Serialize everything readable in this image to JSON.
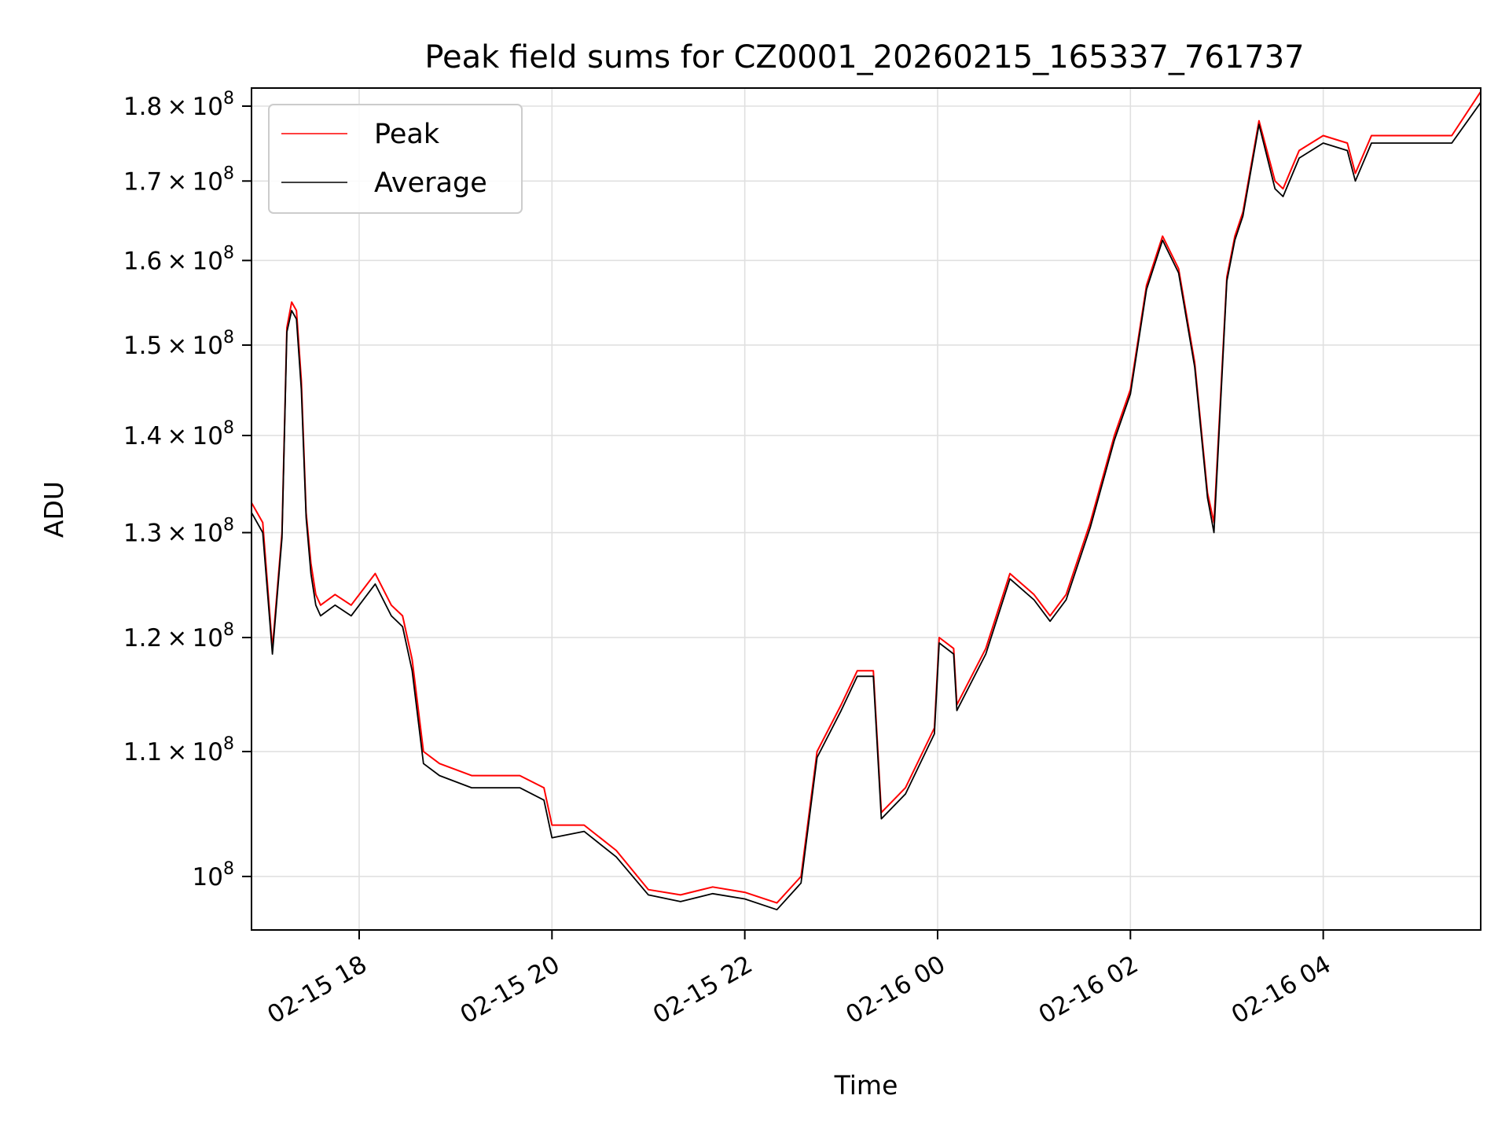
{
  "chart_data": {
    "type": "line",
    "title": "Peak field sums for CZ0001_20260215_165337_761737",
    "xlabel": "Time",
    "ylabel": "ADU",
    "y_scale": "log",
    "xlim": [
      "2026-02-15 16:53",
      "2026-02-16 05:38"
    ],
    "ylim": [
      96000000,
      182500000
    ],
    "grid": true,
    "legend_placement": "upper-left",
    "x_ticks": [
      {
        "value": "2026-02-15 18:00",
        "label": "02-15 18"
      },
      {
        "value": "2026-02-15 20:00",
        "label": "02-15 20"
      },
      {
        "value": "2026-02-15 22:00",
        "label": "02-15 22"
      },
      {
        "value": "2026-02-16 00:00",
        "label": "02-16 00"
      },
      {
        "value": "2026-02-16 02:00",
        "label": "02-16 02"
      },
      {
        "value": "2026-02-16 04:00",
        "label": "02-16 04"
      }
    ],
    "y_ticks": [
      {
        "value": 100000000,
        "mant": "",
        "exp": "8"
      },
      {
        "value": 110000000,
        "mant": "1.1",
        "exp": "8"
      },
      {
        "value": 120000000,
        "mant": "1.2",
        "exp": "8"
      },
      {
        "value": 130000000,
        "mant": "1.3",
        "exp": "8"
      },
      {
        "value": 140000000,
        "mant": "1.4",
        "exp": "8"
      },
      {
        "value": 150000000,
        "mant": "1.5",
        "exp": "8"
      },
      {
        "value": 160000000,
        "mant": "1.6",
        "exp": "8"
      },
      {
        "value": 170000000,
        "mant": "1.7",
        "exp": "8"
      },
      {
        "value": 180000000,
        "mant": "1.8",
        "exp": "8"
      }
    ],
    "series": [
      {
        "name": "Peak",
        "color": "#ff0000",
        "x": [
          "2026-02-15 16:53",
          "2026-02-15 17:00",
          "2026-02-15 17:06",
          "2026-02-15 17:12",
          "2026-02-15 17:15",
          "2026-02-15 17:18",
          "2026-02-15 17:21",
          "2026-02-15 17:24",
          "2026-02-15 17:27",
          "2026-02-15 17:30",
          "2026-02-15 17:33",
          "2026-02-15 17:36",
          "2026-02-15 17:45",
          "2026-02-15 17:55",
          "2026-02-15 18:10",
          "2026-02-15 18:20",
          "2026-02-15 18:27",
          "2026-02-15 18:33",
          "2026-02-15 18:40",
          "2026-02-15 18:50",
          "2026-02-15 19:10",
          "2026-02-15 19:40",
          "2026-02-15 19:55",
          "2026-02-15 20:00",
          "2026-02-15 20:20",
          "2026-02-15 20:40",
          "2026-02-15 21:00",
          "2026-02-15 21:20",
          "2026-02-15 21:40",
          "2026-02-15 22:00",
          "2026-02-15 22:20",
          "2026-02-15 22:35",
          "2026-02-15 22:45",
          "2026-02-15 23:00",
          "2026-02-15 23:10",
          "2026-02-15 23:20",
          "2026-02-15 23:25",
          "2026-02-15 23:40",
          "2026-02-15 23:58",
          "2026-02-16 00:01",
          "2026-02-16 00:10",
          "2026-02-16 00:12",
          "2026-02-16 00:30",
          "2026-02-16 00:45",
          "2026-02-16 01:00",
          "2026-02-16 01:10",
          "2026-02-16 01:20",
          "2026-02-16 01:35",
          "2026-02-16 01:50",
          "2026-02-16 02:00",
          "2026-02-16 02:10",
          "2026-02-16 02:20",
          "2026-02-16 02:30",
          "2026-02-16 02:40",
          "2026-02-16 02:48",
          "2026-02-16 02:52",
          "2026-02-16 03:00",
          "2026-02-16 03:05",
          "2026-02-16 03:10",
          "2026-02-16 03:20",
          "2026-02-16 03:30",
          "2026-02-16 03:35",
          "2026-02-16 03:45",
          "2026-02-16 04:00",
          "2026-02-16 04:15",
          "2026-02-16 04:20",
          "2026-02-16 04:30",
          "2026-02-16 05:00",
          "2026-02-16 05:20",
          "2026-02-16 05:38"
        ],
        "values": [
          133000000,
          131000000,
          119000000,
          130000000,
          152000000,
          155000000,
          154000000,
          146000000,
          132000000,
          127000000,
          124000000,
          123000000,
          124000000,
          123000000,
          126000000,
          123000000,
          122000000,
          118000000,
          110000000,
          109000000,
          108000000,
          108000000,
          107000000,
          104000000,
          104000000,
          102000000,
          99000000,
          98600000,
          99200000,
          98800000,
          98000000,
          100000000,
          110000000,
          114000000,
          117000000,
          117000000,
          105000000,
          107000000,
          112000000,
          120000000,
          119000000,
          114000000,
          119000000,
          126000000,
          124000000,
          122000000,
          124000000,
          131000000,
          140000000,
          145000000,
          157000000,
          163000000,
          159000000,
          148000000,
          134000000,
          131000000,
          158000000,
          163000000,
          166000000,
          178000000,
          170000000,
          169000000,
          174000000,
          176000000,
          175000000,
          171000000,
          176000000,
          176000000,
          176000000,
          182000000
        ]
      },
      {
        "name": "Average",
        "color": "#000000",
        "x": [
          "2026-02-15 16:53",
          "2026-02-15 17:00",
          "2026-02-15 17:06",
          "2026-02-15 17:12",
          "2026-02-15 17:15",
          "2026-02-15 17:18",
          "2026-02-15 17:21",
          "2026-02-15 17:24",
          "2026-02-15 17:27",
          "2026-02-15 17:30",
          "2026-02-15 17:33",
          "2026-02-15 17:36",
          "2026-02-15 17:45",
          "2026-02-15 17:55",
          "2026-02-15 18:10",
          "2026-02-15 18:20",
          "2026-02-15 18:27",
          "2026-02-15 18:33",
          "2026-02-15 18:40",
          "2026-02-15 18:50",
          "2026-02-15 19:10",
          "2026-02-15 19:40",
          "2026-02-15 19:55",
          "2026-02-15 20:00",
          "2026-02-15 20:20",
          "2026-02-15 20:40",
          "2026-02-15 21:00",
          "2026-02-15 21:20",
          "2026-02-15 21:40",
          "2026-02-15 22:00",
          "2026-02-15 22:20",
          "2026-02-15 22:35",
          "2026-02-15 22:45",
          "2026-02-15 23:00",
          "2026-02-15 23:10",
          "2026-02-15 23:20",
          "2026-02-15 23:25",
          "2026-02-15 23:40",
          "2026-02-15 23:58",
          "2026-02-16 00:01",
          "2026-02-16 00:10",
          "2026-02-16 00:12",
          "2026-02-16 00:30",
          "2026-02-16 00:45",
          "2026-02-16 01:00",
          "2026-02-16 01:10",
          "2026-02-16 01:20",
          "2026-02-16 01:35",
          "2026-02-16 01:50",
          "2026-02-16 02:00",
          "2026-02-16 02:10",
          "2026-02-16 02:20",
          "2026-02-16 02:30",
          "2026-02-16 02:40",
          "2026-02-16 02:48",
          "2026-02-16 02:52",
          "2026-02-16 03:00",
          "2026-02-16 03:05",
          "2026-02-16 03:10",
          "2026-02-16 03:20",
          "2026-02-16 03:30",
          "2026-02-16 03:35",
          "2026-02-16 03:45",
          "2026-02-16 04:00",
          "2026-02-16 04:15",
          "2026-02-16 04:20",
          "2026-02-16 04:30",
          "2026-02-16 05:00",
          "2026-02-16 05:20",
          "2026-02-16 05:38"
        ],
        "values": [
          132000000,
          130000000,
          118500000,
          129500000,
          151500000,
          154000000,
          153000000,
          145000000,
          131500000,
          126000000,
          123000000,
          122000000,
          123000000,
          122000000,
          125000000,
          122000000,
          121000000,
          117000000,
          109000000,
          108000000,
          107000000,
          107000000,
          106000000,
          103000000,
          103500000,
          101500000,
          98600000,
          98100000,
          98700000,
          98300000,
          97500000,
          99500000,
          109500000,
          113500000,
          116500000,
          116500000,
          104500000,
          106500000,
          111500000,
          119500000,
          118500000,
          113500000,
          118500000,
          125500000,
          123500000,
          121500000,
          123500000,
          130500000,
          139500000,
          144500000,
          156500000,
          162500000,
          158500000,
          147500000,
          133500000,
          130000000,
          157500000,
          162500000,
          165500000,
          177500000,
          169000000,
          168000000,
          173000000,
          175000000,
          174000000,
          170000000,
          175000000,
          175000000,
          175000000,
          180500000
        ]
      }
    ]
  }
}
